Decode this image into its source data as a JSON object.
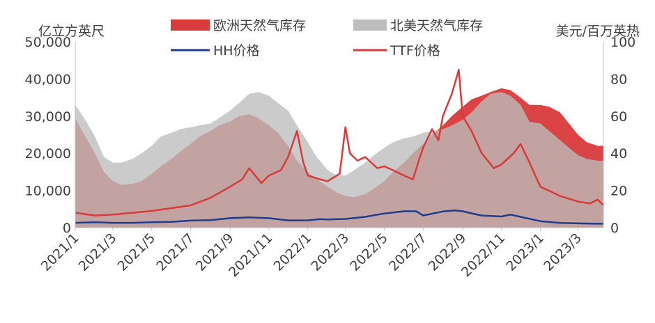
{
  "chart_data": {
    "type": "area",
    "left_axis_unit": "亿立方英尺",
    "right_axis_unit": "美元/百万英热",
    "ylim_left": [
      0,
      50000
    ],
    "ylim_right": [
      0,
      100
    ],
    "left_ticks": [
      "0",
      "10,000",
      "20,000",
      "30,000",
      "40,000",
      "50,000"
    ],
    "right_ticks": [
      "0",
      "20",
      "40",
      "60",
      "80",
      "100"
    ],
    "x_range": [
      "2021-01",
      "2023-04"
    ],
    "x_ticks": [
      "2021/1",
      "2021/3",
      "2021/5",
      "2021/7",
      "2021/9",
      "2021/11",
      "2022/1",
      "2022/3",
      "2022/5",
      "2022/7",
      "2022/9",
      "2022/11",
      "2023/1",
      "2023/3"
    ],
    "legend_position": "top",
    "grid": false,
    "series": [
      {
        "name": "欧洲天然气库存",
        "kind": "area",
        "axis": "left",
        "color": "#d93a3a",
        "x": [
          "2021-01-01",
          "2021-01-15",
          "2021-02-01",
          "2021-02-15",
          "2021-03-01",
          "2021-03-15",
          "2021-04-01",
          "2021-04-15",
          "2021-05-01",
          "2021-05-15",
          "2021-06-01",
          "2021-06-15",
          "2021-07-01",
          "2021-07-15",
          "2021-08-01",
          "2021-08-15",
          "2021-09-01",
          "2021-09-15",
          "2021-10-01",
          "2021-10-15",
          "2021-11-01",
          "2021-11-15",
          "2021-12-01",
          "2021-12-15",
          "2022-01-01",
          "2022-01-15",
          "2022-02-01",
          "2022-02-15",
          "2022-03-01",
          "2022-03-15",
          "2022-04-01",
          "2022-04-15",
          "2022-05-01",
          "2022-05-15",
          "2022-06-01",
          "2022-06-15",
          "2022-07-01",
          "2022-07-15",
          "2022-08-01",
          "2022-08-15",
          "2022-09-01",
          "2022-09-15",
          "2022-10-01",
          "2022-10-15",
          "2022-11-01",
          "2022-11-15",
          "2022-12-01",
          "2022-12-15",
          "2023-01-01",
          "2023-01-15",
          "2023-02-01",
          "2023-02-15",
          "2023-03-01",
          "2023-03-15",
          "2023-04-01",
          "2023-04-10"
        ],
        "values": [
          29500,
          25000,
          20000,
          15000,
          12500,
          11500,
          11800,
          12500,
          14500,
          16500,
          18500,
          20500,
          22500,
          24500,
          26000,
          27500,
          28500,
          30000,
          30500,
          29500,
          27500,
          25500,
          22000,
          18000,
          15000,
          13000,
          11000,
          9500,
          8500,
          8200,
          9000,
          10500,
          12500,
          15000,
          17500,
          20000,
          22500,
          25000,
          27500,
          30000,
          32500,
          34500,
          35500,
          36500,
          37500,
          37000,
          35000,
          33000,
          33000,
          32500,
          31000,
          28000,
          25000,
          23000,
          22000,
          22000
        ]
      },
      {
        "name": "北美天然气库存",
        "kind": "area",
        "axis": "left",
        "color": "#bdbdbd",
        "x": [
          "2021-01-01",
          "2021-01-15",
          "2021-02-01",
          "2021-02-15",
          "2021-03-01",
          "2021-03-15",
          "2021-04-01",
          "2021-04-15",
          "2021-05-01",
          "2021-05-15",
          "2021-06-01",
          "2021-06-15",
          "2021-07-01",
          "2021-07-15",
          "2021-08-01",
          "2021-08-15",
          "2021-09-01",
          "2021-09-15",
          "2021-10-01",
          "2021-10-15",
          "2021-11-01",
          "2021-11-15",
          "2021-12-01",
          "2021-12-15",
          "2022-01-01",
          "2022-01-15",
          "2022-02-01",
          "2022-02-15",
          "2022-03-01",
          "2022-03-15",
          "2022-04-01",
          "2022-04-15",
          "2022-05-01",
          "2022-05-15",
          "2022-06-01",
          "2022-06-15",
          "2022-07-01",
          "2022-07-15",
          "2022-08-01",
          "2022-08-15",
          "2022-09-01",
          "2022-09-15",
          "2022-10-01",
          "2022-10-15",
          "2022-11-01",
          "2022-11-15",
          "2022-12-01",
          "2022-12-15",
          "2023-01-01",
          "2023-01-15",
          "2023-02-01",
          "2023-02-15",
          "2023-03-01",
          "2023-03-15",
          "2023-04-01",
          "2023-04-10"
        ],
        "values": [
          33000,
          29500,
          24500,
          19000,
          17500,
          17500,
          18500,
          20000,
          22000,
          24500,
          25500,
          26500,
          27000,
          27500,
          28000,
          29500,
          31500,
          33500,
          36000,
          36500,
          35500,
          33500,
          31500,
          27500,
          23000,
          19000,
          15500,
          14000,
          14000,
          15500,
          17500,
          19500,
          21500,
          23000,
          24000,
          24500,
          25500,
          26000,
          26500,
          27500,
          29000,
          31000,
          34000,
          36000,
          36500,
          35500,
          33000,
          28500,
          28000,
          26000,
          23500,
          21500,
          19500,
          18500,
          18000,
          18000
        ]
      },
      {
        "name": "HH价格",
        "kind": "line",
        "axis": "right",
        "color": "#1f3d8c",
        "x": [
          "2021-01-01",
          "2021-02-01",
          "2021-03-01",
          "2021-04-01",
          "2021-05-01",
          "2021-06-01",
          "2021-07-01",
          "2021-08-01",
          "2021-09-01",
          "2021-10-01",
          "2021-11-01",
          "2021-12-01",
          "2022-01-01",
          "2022-01-20",
          "2022-02-01",
          "2022-03-01",
          "2022-04-01",
          "2022-05-01",
          "2022-06-01",
          "2022-06-20",
          "2022-07-01",
          "2022-08-01",
          "2022-08-20",
          "2022-09-01",
          "2022-09-20",
          "2022-10-01",
          "2022-11-01",
          "2022-11-15",
          "2022-12-01",
          "2023-01-01",
          "2023-02-01",
          "2023-03-01",
          "2023-04-01",
          "2023-04-10"
        ],
        "values": [
          2.6,
          2.9,
          2.6,
          2.6,
          2.9,
          3.1,
          3.8,
          4.0,
          5.1,
          5.5,
          5.1,
          3.9,
          3.9,
          4.6,
          4.4,
          4.7,
          5.8,
          7.6,
          8.8,
          8.8,
          6.5,
          8.7,
          9.3,
          8.8,
          7.3,
          6.5,
          6.0,
          7.0,
          5.8,
          3.5,
          2.5,
          2.3,
          2.1,
          2.1
        ]
      },
      {
        "name": "TTF价格",
        "kind": "line",
        "axis": "right",
        "color": "#d93a3a",
        "x": [
          "2021-01-01",
          "2021-02-01",
          "2021-03-01",
          "2021-04-01",
          "2021-05-01",
          "2021-06-01",
          "2021-07-01",
          "2021-08-01",
          "2021-09-01",
          "2021-09-20",
          "2021-10-01",
          "2021-10-20",
          "2021-11-01",
          "2021-11-20",
          "2021-12-01",
          "2021-12-15",
          "2021-12-25",
          "2022-01-01",
          "2022-01-20",
          "2022-02-01",
          "2022-02-20",
          "2022-03-01",
          "2022-03-08",
          "2022-03-20",
          "2022-04-01",
          "2022-04-20",
          "2022-05-01",
          "2022-05-20",
          "2022-06-01",
          "2022-06-15",
          "2022-06-25",
          "2022-07-01",
          "2022-07-15",
          "2022-07-25",
          "2022-08-01",
          "2022-08-15",
          "2022-08-26",
          "2022-09-01",
          "2022-09-15",
          "2022-10-01",
          "2022-10-20",
          "2022-11-01",
          "2022-11-20",
          "2022-12-01",
          "2022-12-15",
          "2023-01-01",
          "2023-01-20",
          "2023-02-01",
          "2023-02-20",
          "2023-03-01",
          "2023-03-20",
          "2023-04-01",
          "2023-04-10"
        ],
        "values": [
          8,
          6.5,
          7,
          8,
          9,
          10.5,
          12,
          16,
          22,
          26,
          32,
          24,
          28,
          31,
          38,
          52,
          35,
          28,
          26,
          25,
          29,
          54,
          40,
          36,
          38,
          32,
          33,
          30,
          28,
          26,
          37,
          43,
          53,
          47,
          60,
          72,
          85,
          60,
          52,
          40,
          32,
          34,
          40,
          45,
          35,
          22,
          19,
          17,
          15,
          14,
          13,
          15,
          12
        ]
      }
    ]
  }
}
